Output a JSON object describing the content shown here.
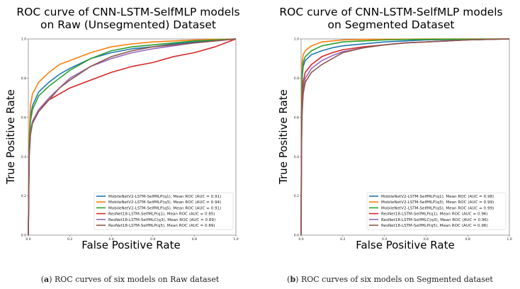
{
  "chart_data": [
    {
      "type": "line",
      "title": "ROC curve of CNN-LSTM-SelfMLP models",
      "subtitle": "on Raw (Unsegmented) Dataset",
      "xlabel": "False Positive Rate",
      "ylabel": "True Positive Rate",
      "xlim": [
        0,
        1
      ],
      "ylim": [
        0,
        1
      ],
      "xticks": [
        "0.0",
        "0.2",
        "0.4",
        "0.6",
        "0.8",
        "1.0"
      ],
      "yticks": [
        "0.0",
        "0.2",
        "0.4",
        "0.6",
        "0.8",
        "1.0"
      ],
      "grid": false,
      "legend_position": "bottom-right",
      "series": [
        {
          "name": "MobileNetV2-LSTM-SelfMLP(q1), Mean ROC (AUC = 0.91)",
          "color": "#1f77b4",
          "x": [
            0,
            0.004,
            0.01,
            0.02,
            0.05,
            0.1,
            0.15,
            0.2,
            0.3,
            0.4,
            0.5,
            0.6,
            0.7,
            0.8,
            0.9,
            1.0
          ],
          "y": [
            0,
            0.45,
            0.6,
            0.66,
            0.73,
            0.78,
            0.82,
            0.85,
            0.9,
            0.93,
            0.95,
            0.96,
            0.975,
            0.985,
            0.995,
            1.0
          ]
        },
        {
          "name": "MobileNetV2-LSTM-SelfMLP(q3), Mean ROC (AUC = 0.94)",
          "color": "#ff7f0e",
          "x": [
            0,
            0.004,
            0.01,
            0.02,
            0.05,
            0.1,
            0.15,
            0.2,
            0.3,
            0.4,
            0.5,
            0.6,
            0.7,
            0.8,
            0.9,
            1.0
          ],
          "y": [
            0,
            0.5,
            0.66,
            0.72,
            0.78,
            0.83,
            0.87,
            0.89,
            0.93,
            0.96,
            0.975,
            0.985,
            0.99,
            0.995,
            0.998,
            1.0
          ]
        },
        {
          "name": "MobileNetV2-LSTM-SelfMLP(q5), Mean ROC (AUC = 0.91)",
          "color": "#2ca02c",
          "x": [
            0,
            0.004,
            0.01,
            0.02,
            0.05,
            0.1,
            0.15,
            0.2,
            0.3,
            0.4,
            0.5,
            0.6,
            0.7,
            0.8,
            0.9,
            1.0
          ],
          "y": [
            0,
            0.45,
            0.58,
            0.64,
            0.71,
            0.76,
            0.8,
            0.84,
            0.9,
            0.94,
            0.96,
            0.97,
            0.98,
            0.99,
            0.995,
            1.0
          ]
        },
        {
          "name": "ResNet18-LSTM-SelfMLP(q1), Mean ROC (AUC = 0.85)",
          "color": "#d62728",
          "x": [
            0,
            0.004,
            0.01,
            0.02,
            0.05,
            0.1,
            0.15,
            0.2,
            0.3,
            0.4,
            0.5,
            0.6,
            0.7,
            0.8,
            0.9,
            0.95,
            1.0
          ],
          "y": [
            0,
            0.4,
            0.52,
            0.58,
            0.64,
            0.69,
            0.72,
            0.75,
            0.79,
            0.83,
            0.86,
            0.88,
            0.91,
            0.93,
            0.96,
            0.98,
            1.0
          ]
        },
        {
          "name": "ResNet18-LSTM-SelfMLC(q3), Mean ROC (AUC = 0.89)",
          "color": "#9467bd",
          "x": [
            0,
            0.004,
            0.01,
            0.02,
            0.05,
            0.1,
            0.15,
            0.2,
            0.3,
            0.4,
            0.5,
            0.6,
            0.7,
            0.8,
            0.9,
            1.0
          ],
          "y": [
            0,
            0.4,
            0.52,
            0.58,
            0.64,
            0.7,
            0.75,
            0.8,
            0.86,
            0.9,
            0.93,
            0.95,
            0.965,
            0.98,
            0.99,
            1.0
          ]
        },
        {
          "name": "ResNet18-LSTM-SelfMLP(q5), Mean ROC (AUC = 0.89)",
          "color": "#8c564b",
          "x": [
            0,
            0.004,
            0.01,
            0.02,
            0.05,
            0.1,
            0.15,
            0.2,
            0.3,
            0.4,
            0.5,
            0.6,
            0.7,
            0.8,
            0.9,
            1.0
          ],
          "y": [
            0,
            0.4,
            0.51,
            0.57,
            0.63,
            0.69,
            0.75,
            0.79,
            0.86,
            0.91,
            0.94,
            0.96,
            0.97,
            0.98,
            0.99,
            1.0
          ]
        }
      ]
    },
    {
      "type": "line",
      "title": "ROC curve of CNN-LSTM-SelfMLP models",
      "subtitle": "on Segmented Dataset",
      "xlabel": "False Positive Rate",
      "ylabel": "True Positive Rate",
      "xlim": [
        0,
        1
      ],
      "ylim": [
        0,
        1
      ],
      "xticks": [
        "0.0",
        "0.2",
        "0.4",
        "0.6",
        "0.8",
        "1.0"
      ],
      "yticks": [
        "0.0",
        "0.2",
        "0.4",
        "0.6",
        "0.8",
        "1.0"
      ],
      "grid": false,
      "legend_position": "bottom-right",
      "series": [
        {
          "name": "MobileNetV2-LSTM-SelfMLP(q1), Mean ROC (AUC = 0.98)",
          "color": "#1f77b4",
          "x": [
            0,
            0.002,
            0.005,
            0.01,
            0.02,
            0.05,
            0.1,
            0.15,
            0.2,
            0.3,
            0.4,
            0.5,
            0.6,
            0.8,
            1.0
          ],
          "y": [
            0,
            0.6,
            0.8,
            0.86,
            0.89,
            0.92,
            0.94,
            0.955,
            0.965,
            0.975,
            0.985,
            0.99,
            0.995,
            0.998,
            1.0
          ]
        },
        {
          "name": "MobileNetV2-LSTM-SelfMLP(q3), Mean ROC (AUC = 0.99)",
          "color": "#ff7f0e",
          "x": [
            0,
            0.002,
            0.005,
            0.01,
            0.02,
            0.05,
            0.1,
            0.15,
            0.2,
            0.3,
            0.4,
            0.5,
            0.6,
            0.8,
            1.0
          ],
          "y": [
            0,
            0.7,
            0.88,
            0.92,
            0.94,
            0.965,
            0.985,
            0.99,
            0.995,
            0.997,
            0.998,
            0.999,
            1.0,
            1.0,
            1.0
          ]
        },
        {
          "name": "MobileNetV2-LSTM-SelfMLP(q5), Mean ROC (AUC = 0.99)",
          "color": "#2ca02c",
          "x": [
            0,
            0.002,
            0.005,
            0.01,
            0.02,
            0.05,
            0.1,
            0.15,
            0.2,
            0.3,
            0.4,
            0.5,
            0.6,
            0.8,
            1.0
          ],
          "y": [
            0,
            0.62,
            0.82,
            0.88,
            0.91,
            0.94,
            0.965,
            0.975,
            0.985,
            0.99,
            0.995,
            0.997,
            0.998,
            0.999,
            1.0
          ]
        },
        {
          "name": "ResNet18-LSTM-SelfMLP(q1), Mean ROC (AUC = 0.96)",
          "color": "#d62728",
          "x": [
            0,
            0.002,
            0.005,
            0.01,
            0.02,
            0.05,
            0.1,
            0.15,
            0.2,
            0.3,
            0.4,
            0.5,
            0.6,
            0.7,
            0.8,
            1.0
          ],
          "y": [
            0,
            0.5,
            0.7,
            0.78,
            0.83,
            0.87,
            0.91,
            0.93,
            0.945,
            0.96,
            0.97,
            0.98,
            0.985,
            0.99,
            0.995,
            1.0
          ]
        },
        {
          "name": "ResNet18-LSTM-SelfMLC(q3), Mean ROC (AUC = 0.96)",
          "color": "#9467bd",
          "x": [
            0,
            0.002,
            0.005,
            0.01,
            0.02,
            0.05,
            0.1,
            0.15,
            0.2,
            0.3,
            0.4,
            0.5,
            0.6,
            0.7,
            0.8,
            1.0
          ],
          "y": [
            0,
            0.48,
            0.66,
            0.74,
            0.8,
            0.85,
            0.89,
            0.915,
            0.935,
            0.955,
            0.97,
            0.98,
            0.985,
            0.99,
            0.995,
            1.0
          ]
        },
        {
          "name": "ResNet18-LSTM-SelfMLP(q5), Mean ROC (AUC = 0.96)",
          "color": "#8c564b",
          "x": [
            0,
            0.002,
            0.005,
            0.01,
            0.02,
            0.05,
            0.1,
            0.15,
            0.2,
            0.3,
            0.4,
            0.5,
            0.6,
            0.7,
            0.8,
            1.0
          ],
          "y": [
            0,
            0.45,
            0.62,
            0.72,
            0.78,
            0.83,
            0.87,
            0.9,
            0.93,
            0.955,
            0.97,
            0.98,
            0.985,
            0.99,
            0.995,
            1.0
          ]
        }
      ]
    }
  ],
  "captions": [
    {
      "letter": "a",
      "text": " ROC curves of six models on Raw dataset"
    },
    {
      "letter": "b",
      "text": " ROC curves of six models on Segmented dataset"
    }
  ]
}
